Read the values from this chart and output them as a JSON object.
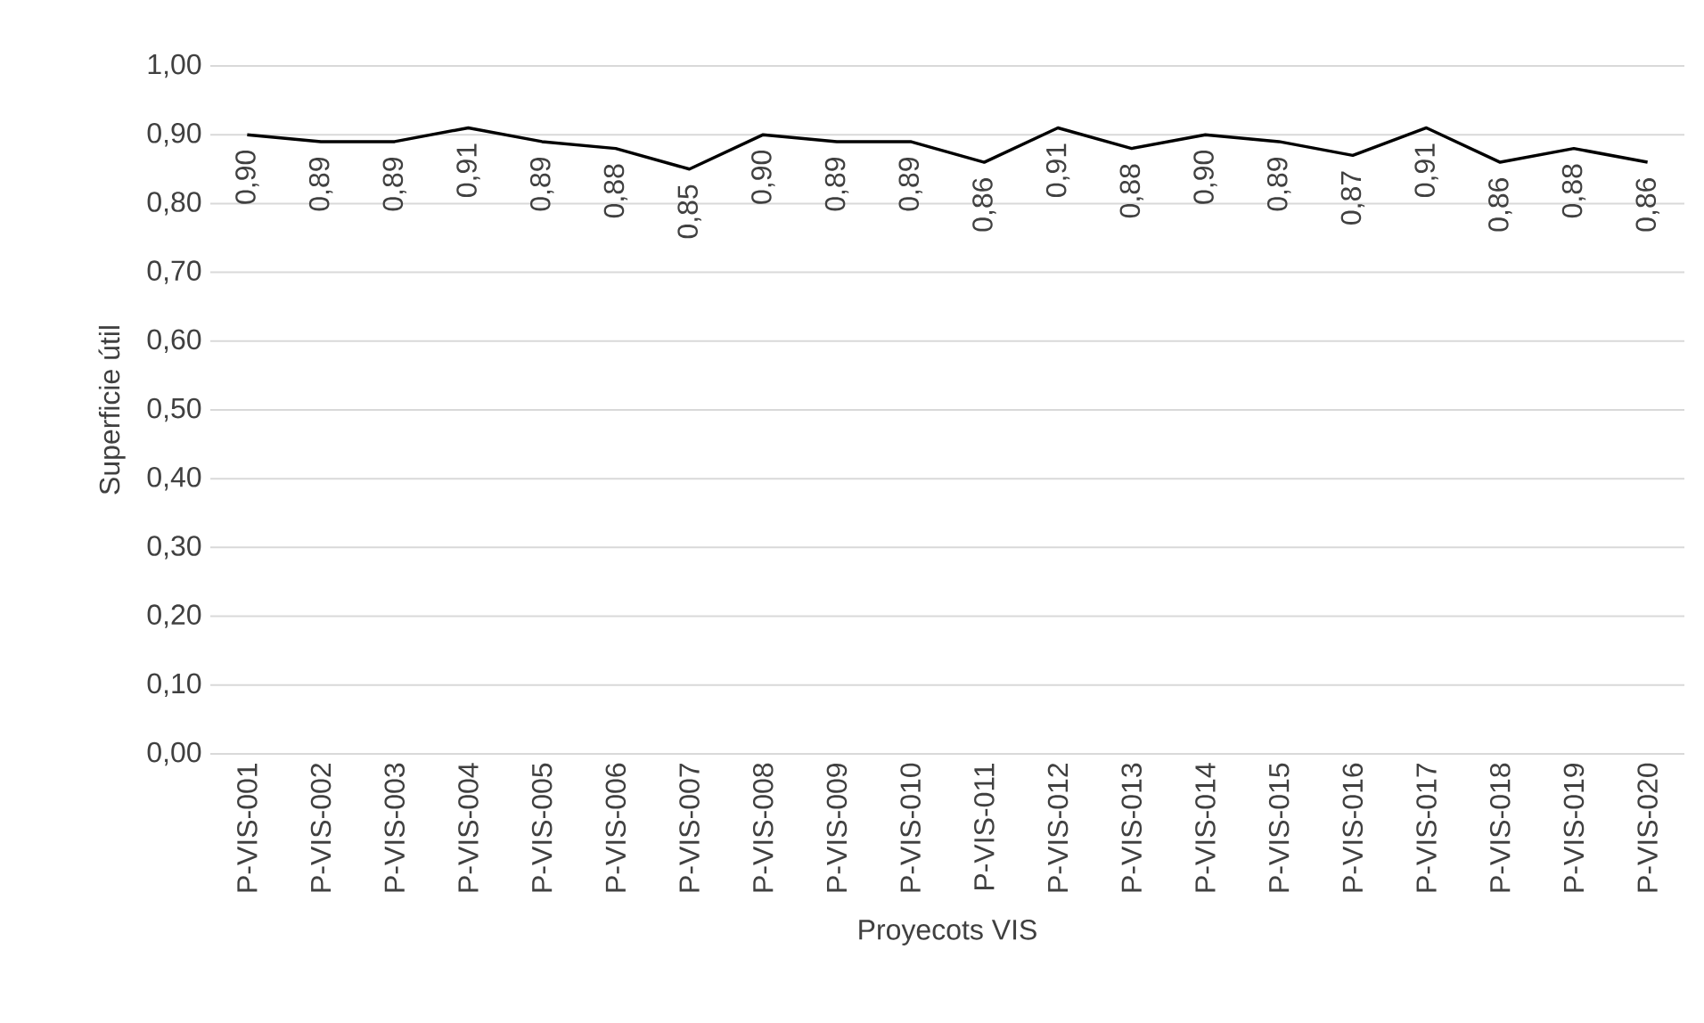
{
  "chart_data": {
    "type": "line",
    "xlabel": "Proyecots VIS",
    "ylabel": "Superficie útil",
    "categories": [
      "P-VIS-001",
      "P-VIS-002",
      "P-VIS-003",
      "P-VIS-004",
      "P-VIS-005",
      "P-VIS-006",
      "P-VIS-007",
      "P-VIS-008",
      "P-VIS-009",
      "P-VIS-010",
      "P-VIS-011",
      "P-VIS-012",
      "P-VIS-013",
      "P-VIS-014",
      "P-VIS-015",
      "P-VIS-016",
      "P-VIS-017",
      "P-VIS-018",
      "P-VIS-019",
      "P-VIS-020"
    ],
    "values": [
      0.9,
      0.89,
      0.89,
      0.91,
      0.89,
      0.88,
      0.85,
      0.9,
      0.89,
      0.89,
      0.86,
      0.91,
      0.88,
      0.9,
      0.89,
      0.87,
      0.91,
      0.86,
      0.88,
      0.86
    ],
    "value_labels": [
      "0,90",
      "0,89",
      "0,89",
      "0,91",
      "0,89",
      "0,88",
      "0,85",
      "0,90",
      "0,89",
      "0,89",
      "0,86",
      "0,91",
      "0,88",
      "0,90",
      "0,89",
      "0,87",
      "0,91",
      "0,86",
      "0,88",
      "0,86"
    ],
    "color": "#000000",
    "ylim": [
      0,
      1
    ],
    "yticks": [
      {
        "value": 0,
        "label": "0,00"
      },
      {
        "value": 0.1,
        "label": "0,10"
      },
      {
        "value": 0.2,
        "label": "0,20"
      },
      {
        "value": 0.3,
        "label": "0,30"
      },
      {
        "value": 0.4,
        "label": "0,40"
      },
      {
        "value": 0.5,
        "label": "0,50"
      },
      {
        "value": 0.6,
        "label": "0,60"
      },
      {
        "value": 0.7,
        "label": "0,70"
      },
      {
        "value": 0.8,
        "label": "0,80"
      },
      {
        "value": 0.9,
        "label": "0,90"
      },
      {
        "value": 1.0,
        "label": "1,00"
      }
    ],
    "grid": "y",
    "marker": "none",
    "line_style": "solid"
  }
}
